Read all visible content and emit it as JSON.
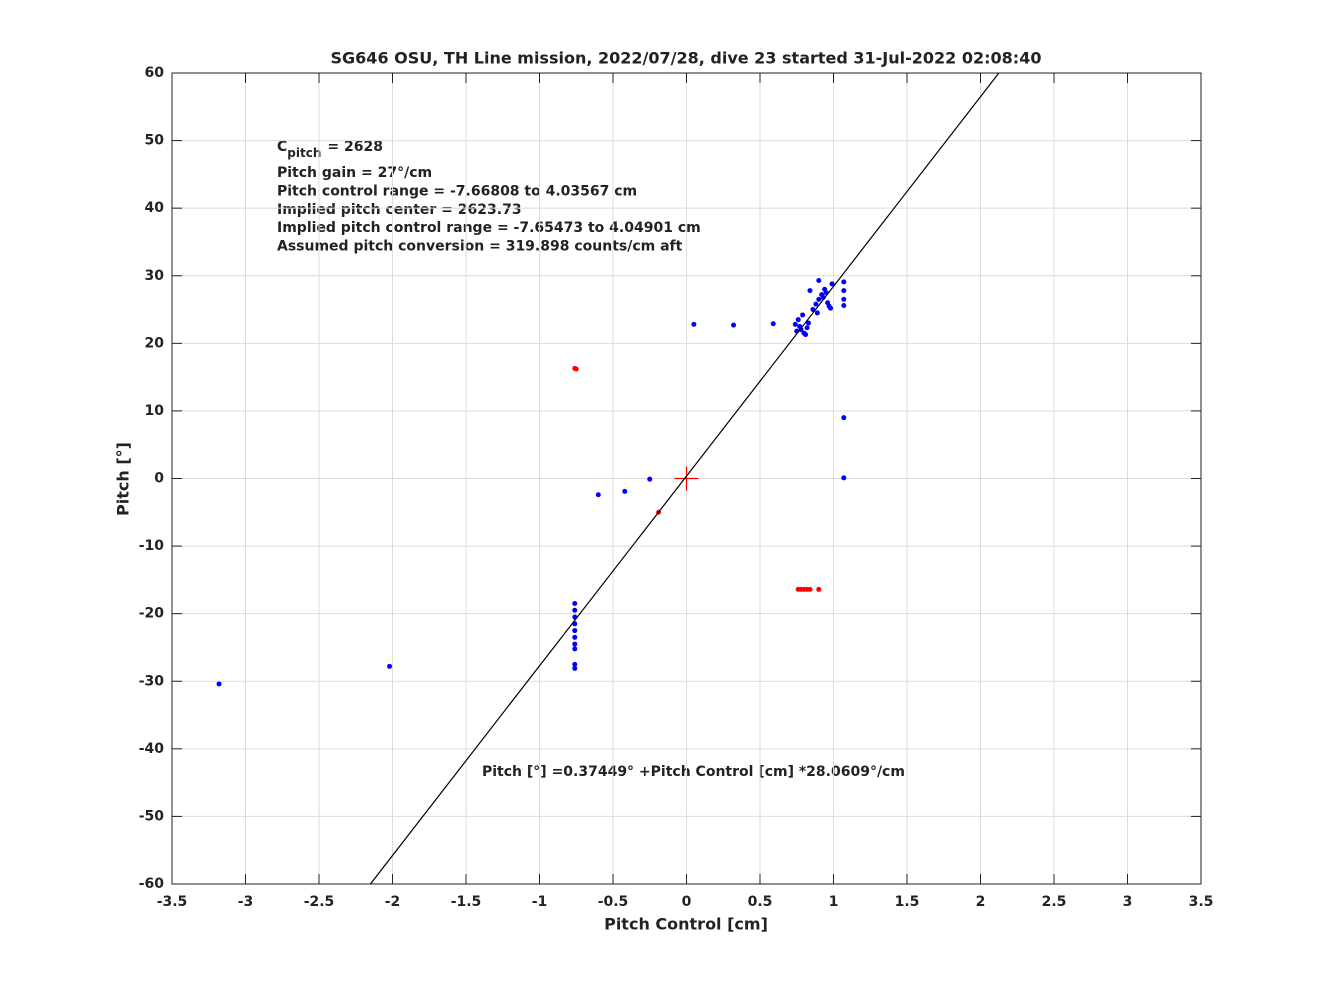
{
  "chart_data": {
    "type": "scatter",
    "title": "SG646 OSU, TH Line mission, 2022/07/28, dive 23 started 31-Jul-2022 02:08:40",
    "xlabel": "Pitch Control [cm]",
    "ylabel": "Pitch [°]",
    "xlim": [
      -3.5,
      3.5
    ],
    "ylim": [
      -60,
      60
    ],
    "xticks": [
      -3.5,
      -3,
      -2.5,
      -2,
      -1.5,
      -1,
      -0.5,
      0,
      0.5,
      1,
      1.5,
      2,
      2.5,
      3,
      3.5
    ],
    "yticks": [
      -60,
      -50,
      -40,
      -30,
      -20,
      -10,
      0,
      10,
      20,
      30,
      40,
      50,
      60
    ],
    "grid": true,
    "cpitch": {
      "symbol": "C",
      "subscript": "pitch",
      "text": "= 2628"
    },
    "annotations": [
      "Pitch gain = 27°/cm",
      "Pitch control range = -7.66808 to 4.03567 cm",
      "Implied pitch center = 2623.73",
      "Implied pitch control range = -7.65473 to 4.04901 cm",
      "Assumed pitch conversion = 319.898 counts/cm aft"
    ],
    "equation": "Pitch [°] =0.37449° +Pitch Control [cm] *28.0609°/cm",
    "series": [
      {
        "marker": "dot",
        "color": "#0000ff",
        "x": [
          -3.18,
          -2.02,
          -0.6,
          -0.42,
          -0.25,
          0.05,
          0.32,
          0.59,
          1.07,
          1.07,
          -0.76,
          -0.76,
          -0.76,
          -0.76,
          -0.76,
          -0.76,
          -0.76,
          -0.76,
          -0.76,
          -0.76,
          0.74,
          0.76,
          0.78,
          0.8,
          0.82,
          0.75,
          0.79,
          0.83,
          0.77,
          0.81,
          0.86,
          0.88,
          0.9,
          0.92,
          0.94,
          0.96,
          0.98,
          0.9,
          0.95,
          0.99,
          0.89,
          0.93,
          0.97,
          0.84,
          1.07,
          1.07,
          1.07,
          1.07
        ],
        "y": [
          -30.4,
          -27.8,
          -2.4,
          -1.9,
          -0.1,
          22.8,
          22.7,
          22.9,
          9.0,
          0.1,
          -18.5,
          -19.5,
          -20.5,
          -21.5,
          -22.5,
          -23.5,
          -24.5,
          -25.2,
          -27.5,
          -28.1,
          22.8,
          23.5,
          22.0,
          21.5,
          22.3,
          21.8,
          24.2,
          23.0,
          22.5,
          21.3,
          25.0,
          25.8,
          26.5,
          27.2,
          28.0,
          26.0,
          25.2,
          29.3,
          27.5,
          28.8,
          24.5,
          26.8,
          25.5,
          27.8,
          25.6,
          26.5,
          27.8,
          29.1
        ]
      },
      {
        "marker": "dot",
        "color": "#ff0000",
        "x": [
          -0.75,
          -0.76,
          -0.19,
          0.76,
          0.78,
          0.8,
          0.82,
          0.84,
          0.9
        ],
        "y": [
          16.2,
          16.3,
          -5.0,
          -16.4,
          -16.4,
          -16.4,
          -16.4,
          -16.4,
          -16.4
        ]
      },
      {
        "marker": "plus",
        "color": "#ff0000",
        "x": [
          0
        ],
        "y": [
          0
        ]
      },
      {
        "marker": "line",
        "color": "#000000",
        "x": [
          -2.15,
          2.125
        ],
        "y": [
          -60,
          60
        ]
      }
    ]
  }
}
